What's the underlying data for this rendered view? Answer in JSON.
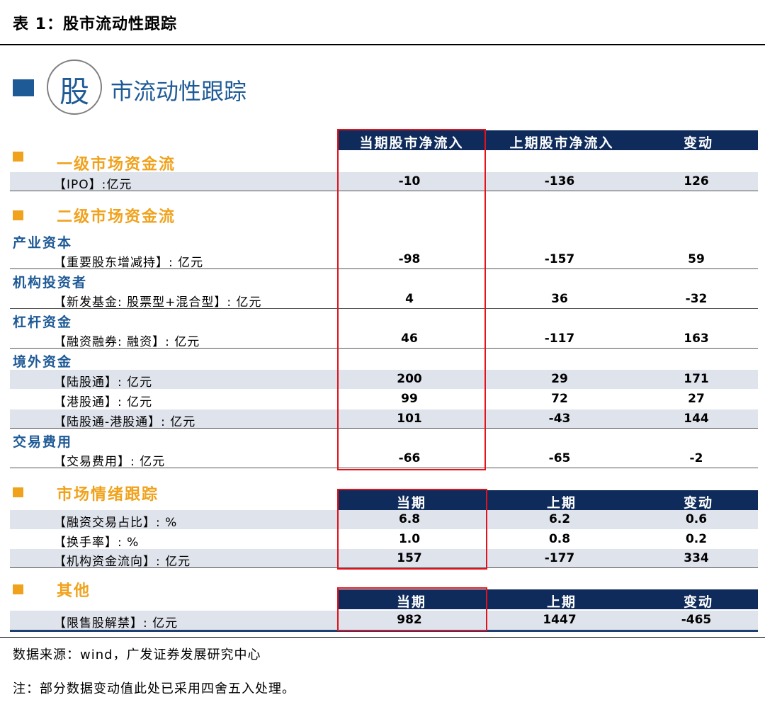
{
  "caption": "表 1：股市流动性跟踪",
  "title": {
    "first_char": "股",
    "rest": "市流动性跟踪"
  },
  "header1": {
    "col1": "当期股市净流入",
    "col2": "上期股市净流入",
    "col3": "变动"
  },
  "header2": {
    "col1": "当期",
    "col2": "上期",
    "col3": "变动"
  },
  "sections": {
    "primary": "一级市场资金流",
    "secondary": "二级市场资金流",
    "sentiment": "市场情绪跟踪",
    "other": "其他"
  },
  "subsections": {
    "industrial": "产业资本",
    "institutional": "机构投资者",
    "leverage": "杠杆资金",
    "foreign": "境外资金",
    "fees": "交易费用"
  },
  "rows": {
    "ipo": {
      "label": "【IPO】:亿元",
      "cur": "-10",
      "prev": "-136",
      "chg": "126"
    },
    "holder": {
      "label": "【重要股东增减持】: 亿元",
      "cur": "-98",
      "prev": "-157",
      "chg": "59"
    },
    "fund": {
      "label": "【新发基金: 股票型+混合型】: 亿元",
      "cur": "4",
      "prev": "36",
      "chg": "-32"
    },
    "margin": {
      "label": "【融资融券: 融资】: 亿元",
      "cur": "46",
      "prev": "-117",
      "chg": "163"
    },
    "north": {
      "label": "【陆股通】: 亿元",
      "cur": "200",
      "prev": "29",
      "chg": "171"
    },
    "south": {
      "label": "【港股通】: 亿元",
      "cur": "99",
      "prev": "72",
      "chg": "27"
    },
    "net": {
      "label": "【陆股通-港股通】: 亿元",
      "cur": "101",
      "prev": "-43",
      "chg": "144"
    },
    "fee": {
      "label": "【交易费用】: 亿元",
      "cur": "-66",
      "prev": "-65",
      "chg": "-2"
    },
    "margin_ratio": {
      "label": "【融资交易占比】: %",
      "cur": "6.8",
      "prev": "6.2",
      "chg": "0.6"
    },
    "turnover": {
      "label": "【换手率】: %",
      "cur": "1.0",
      "prev": "0.8",
      "chg": "0.2"
    },
    "inst_flow": {
      "label": "【机构资金流向】: 亿元",
      "cur": "157",
      "prev": "-177",
      "chg": "334"
    },
    "unlock": {
      "label": "【限售股解禁】: 亿元",
      "cur": "982",
      "prev": "1447",
      "chg": "-465"
    }
  },
  "notes": {
    "source": "数据来源：wind，广发证券发展研究中心",
    "remark": "注：部分数据变动值此处已采用四舍五入处理。"
  },
  "colors": {
    "header_bg": "#0f2b5b",
    "accent_orange": "#f0a21c",
    "accent_blue": "#1e5a96",
    "highlight_red": "#e3121b",
    "row_shade": "#dfe3ec"
  }
}
